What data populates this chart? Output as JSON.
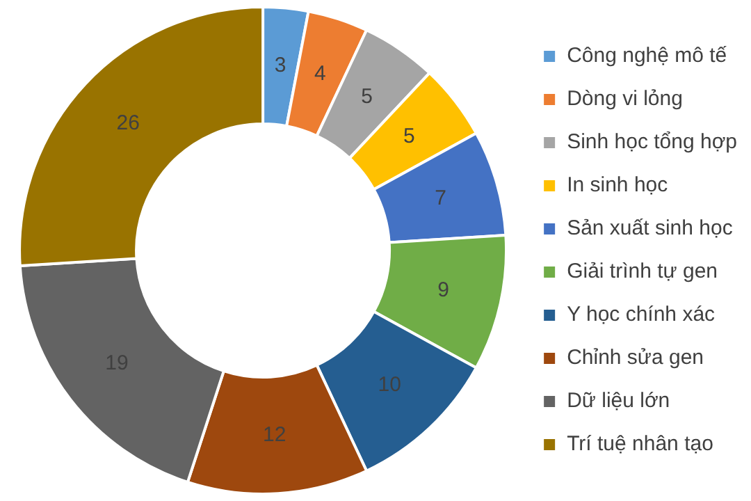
{
  "chart_data": {
    "type": "donut",
    "categories": [
      "Công nghệ mô tế",
      "Dòng vi lỏng",
      "Sinh học tổng hợp",
      "In sinh học",
      "Sản xuất sinh học",
      "Giải trình tự gen",
      "Y học chính xác",
      "Chỉnh sửa gen",
      "Dữ liệu lớn",
      "Trí tuệ nhân tạo"
    ],
    "values": [
      3,
      4,
      5,
      5,
      7,
      9,
      10,
      12,
      19,
      26
    ],
    "colors": [
      "#5b9bd5",
      "#ed7d31",
      "#a5a5a5",
      "#ffc000",
      "#4472c4",
      "#70ad47",
      "#255e91",
      "#9e480e",
      "#636363",
      "#997300"
    ],
    "data_labels": true,
    "legend": "right"
  }
}
